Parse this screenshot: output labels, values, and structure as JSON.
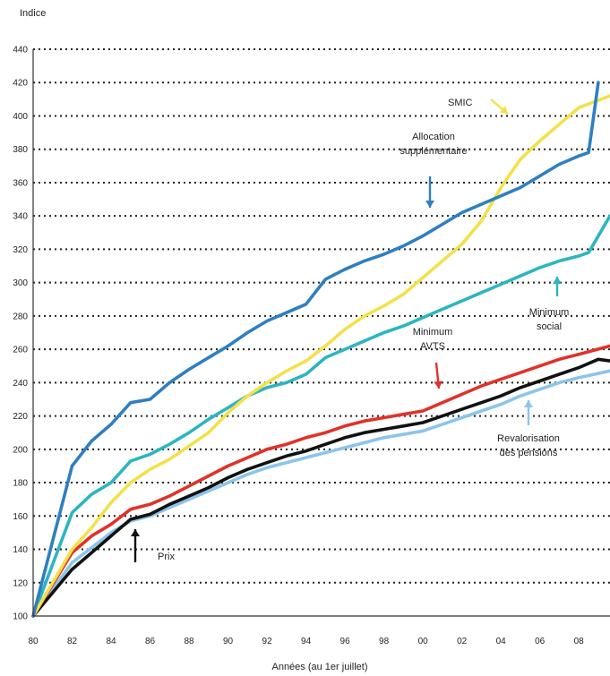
{
  "chart_data": {
    "type": "line",
    "ylabel": "Indice",
    "xlabel": "Années (au 1er juillet)",
    "ylim": [
      100,
      440
    ],
    "yticks": [
      100,
      120,
      140,
      160,
      180,
      200,
      220,
      240,
      260,
      280,
      300,
      320,
      340,
      360,
      380,
      400,
      420,
      440
    ],
    "xlim": [
      1980,
      2009.6
    ],
    "xticks": [
      {
        "year": 1980,
        "label": "80"
      },
      {
        "year": 1982,
        "label": "82"
      },
      {
        "year": 1984,
        "label": "84"
      },
      {
        "year": 1986,
        "label": "86"
      },
      {
        "year": 1988,
        "label": "88"
      },
      {
        "year": 1990,
        "label": "90"
      },
      {
        "year": 1992,
        "label": "92"
      },
      {
        "year": 1994,
        "label": "94"
      },
      {
        "year": 1996,
        "label": "96"
      },
      {
        "year": 1998,
        "label": "98"
      },
      {
        "year": 2000,
        "label": "00"
      },
      {
        "year": 2002,
        "label": "02"
      },
      {
        "year": 2004,
        "label": "04"
      },
      {
        "year": 2006,
        "label": "06"
      },
      {
        "year": 2008,
        "label": "08"
      }
    ],
    "grid": "horizontal-dotted",
    "colors": {
      "allocation": "#2f7fc1",
      "smic": "#f2e14a",
      "minimum_social": "#2cb5c0",
      "avts": "#e0322a",
      "prix": "#111111",
      "pensions": "#8cc4ea"
    },
    "series": [
      {
        "key": "allocation",
        "name": "Allocation supplémentaire",
        "x": [
          1980,
          1982,
          1983,
          1984,
          1985,
          1986,
          1987,
          1988,
          1989,
          1990,
          1991,
          1992,
          1993,
          1994,
          1995,
          1996,
          1997,
          1998,
          1999,
          2000,
          2001,
          2002,
          2003,
          2004,
          2005,
          2006,
          2007,
          2008,
          2008.5,
          2009
        ],
        "y": [
          100,
          190,
          205,
          215,
          228,
          230,
          240,
          248,
          255,
          262,
          270,
          277,
          282,
          287,
          302,
          308,
          313,
          317,
          322,
          328,
          335,
          342,
          347,
          352,
          357,
          364,
          371,
          376,
          378,
          420
        ]
      },
      {
        "key": "smic",
        "name": "SMIC",
        "x": [
          1980,
          1982,
          1983,
          1984,
          1985,
          1986,
          1987,
          1988,
          1989,
          1990,
          1991,
          1992,
          1993,
          1994,
          1995,
          1996,
          1997,
          1998,
          1999,
          2000,
          2001,
          2002,
          2003,
          2004,
          2005,
          2006,
          2007,
          2008,
          2009.6
        ],
        "y": [
          100,
          140,
          153,
          168,
          180,
          188,
          194,
          202,
          210,
          222,
          232,
          240,
          247,
          253,
          262,
          272,
          280,
          286,
          293,
          303,
          313,
          323,
          337,
          357,
          374,
          385,
          395,
          405,
          412
        ]
      },
      {
        "key": "minimum_social",
        "name": "Minimum social",
        "x": [
          1980,
          1982,
          1983,
          1984,
          1985,
          1986,
          1987,
          1988,
          1989,
          1990,
          1991,
          1992,
          1993,
          1994,
          1995,
          1996,
          1997,
          1998,
          1999,
          2000,
          2001,
          2002,
          2003,
          2004,
          2005,
          2006,
          2007,
          2008,
          2008.5,
          2009.6
        ],
        "y": [
          100,
          162,
          173,
          180,
          193,
          197,
          203,
          210,
          218,
          225,
          232,
          237,
          240,
          245,
          255,
          260,
          265,
          270,
          274,
          279,
          284,
          289,
          294,
          299,
          304,
          309,
          313,
          316,
          318,
          340
        ]
      },
      {
        "key": "avts",
        "name": "Minimum AVTS",
        "x": [
          1980,
          1982,
          1983,
          1984,
          1985,
          1986,
          1987,
          1988,
          1989,
          1990,
          1991,
          1992,
          1993,
          1994,
          1995,
          1996,
          1997,
          1998,
          1999,
          2000,
          2001,
          2002,
          2003,
          2004,
          2005,
          2006,
          2007,
          2008,
          2009.6
        ],
        "y": [
          100,
          138,
          148,
          155,
          164,
          167,
          172,
          178,
          184,
          190,
          195,
          200,
          203,
          207,
          210,
          214,
          217,
          219,
          221,
          223,
          228,
          233,
          238,
          242,
          246,
          250,
          254,
          257,
          262
        ]
      },
      {
        "key": "prix",
        "name": "Prix",
        "x": [
          1980,
          1982,
          1983,
          1984,
          1985,
          1986,
          1987,
          1988,
          1989,
          1990,
          1991,
          1992,
          1993,
          1994,
          1995,
          1996,
          1997,
          1998,
          1999,
          2000,
          2001,
          2002,
          2003,
          2004,
          2005,
          2006,
          2007,
          2008,
          2009,
          2009.6
        ],
        "y": [
          100,
          128,
          138,
          148,
          158,
          161,
          167,
          172,
          177,
          183,
          188,
          192,
          196,
          199,
          203,
          207,
          210,
          212,
          214,
          216,
          220,
          224,
          228,
          232,
          237,
          241,
          245,
          249,
          254,
          253
        ]
      },
      {
        "key": "pensions",
        "name": "Revalorisation des pensions",
        "x": [
          1980,
          1982,
          1983,
          1984,
          1985,
          1986,
          1987,
          1988,
          1989,
          1990,
          1991,
          1992,
          1993,
          1994,
          1995,
          1996,
          1997,
          1998,
          1999,
          2000,
          2001,
          2002,
          2003,
          2004,
          2005,
          2006,
          2007,
          2008,
          2009.6
        ],
        "y": [
          100,
          132,
          141,
          150,
          157,
          160,
          165,
          170,
          175,
          180,
          185,
          189,
          192,
          195,
          198,
          201,
          204,
          207,
          209,
          211,
          215,
          219,
          223,
          227,
          232,
          236,
          240,
          243,
          247
        ]
      }
    ],
    "annotations": [
      {
        "key": "smic",
        "lines": [
          "SMIC"
        ]
      },
      {
        "key": "allocation",
        "lines": [
          "Allocation",
          "supplémentaire"
        ]
      },
      {
        "key": "minimum_social",
        "lines": [
          "Minimum",
          "social"
        ]
      },
      {
        "key": "avts",
        "lines": [
          "Minimum",
          "AVTS"
        ]
      },
      {
        "key": "pensions",
        "lines": [
          "Revalorisation",
          "des pensions"
        ]
      },
      {
        "key": "prix",
        "lines": [
          "Prix"
        ]
      }
    ]
  }
}
